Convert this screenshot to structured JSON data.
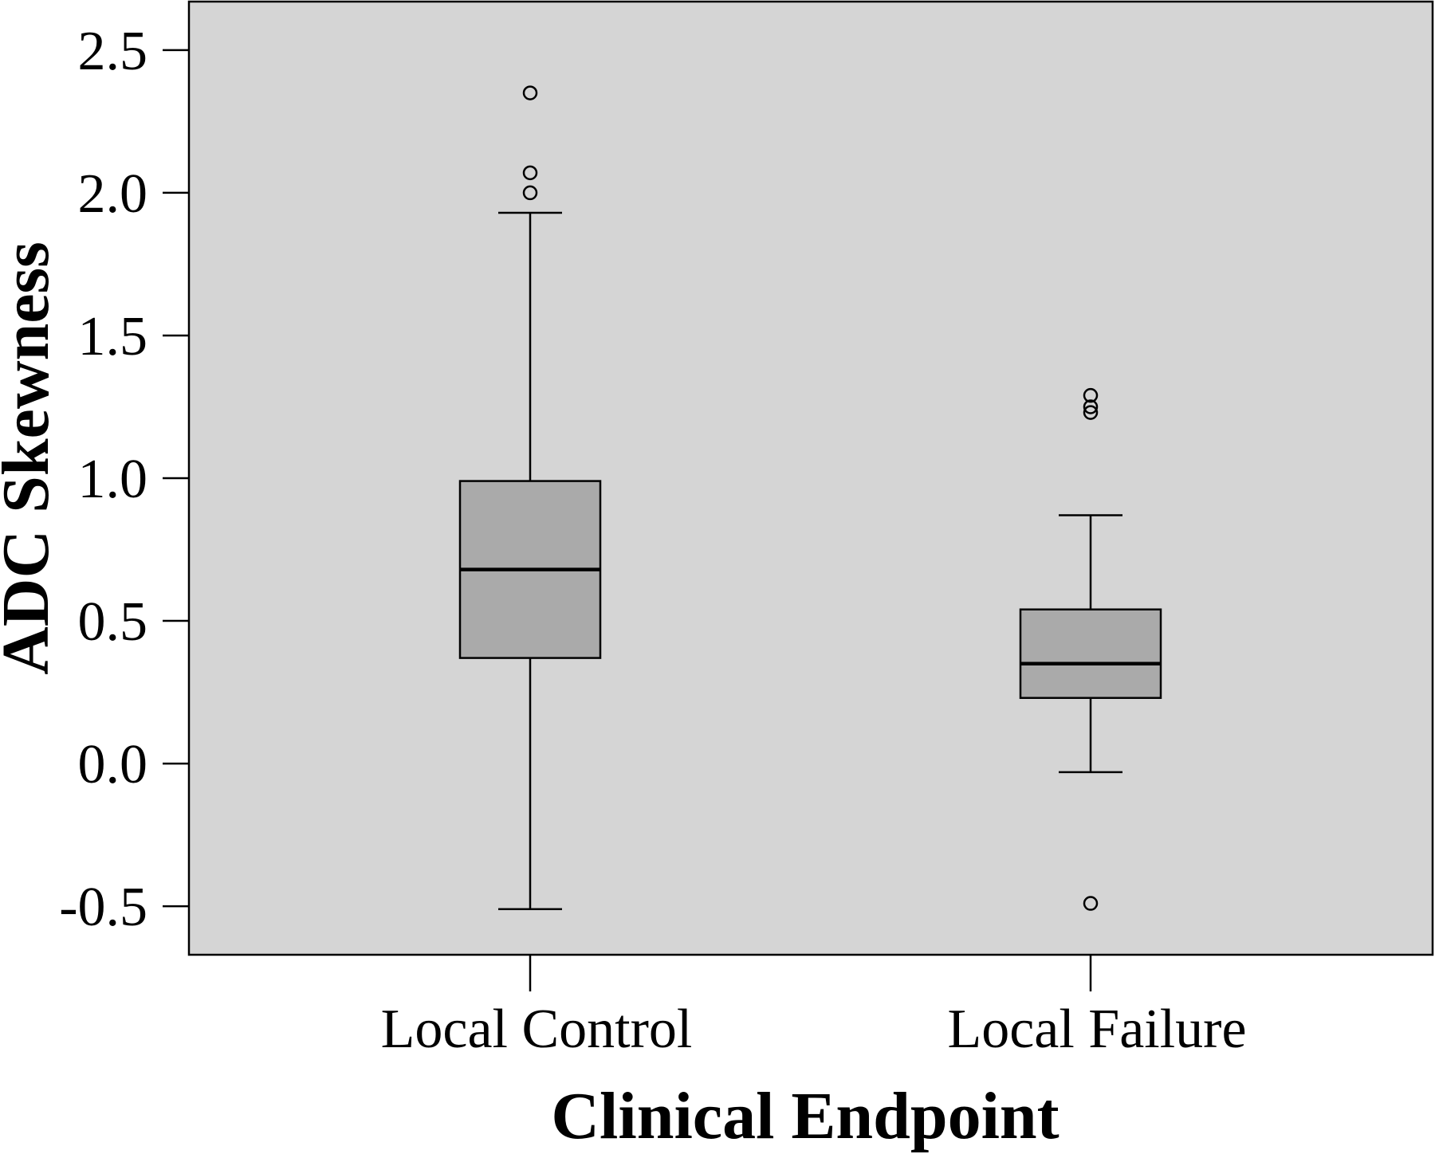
{
  "chart_data": {
    "type": "boxplot",
    "title": "",
    "xlabel": "Clinical Endpoint",
    "ylabel": "ADC Skewness",
    "ylim": [
      -0.67,
      2.67
    ],
    "yticks": [
      -0.5,
      0.0,
      0.5,
      1.0,
      1.5,
      2.0,
      2.5
    ],
    "ytick_labels": [
      "-0.5",
      "0.0",
      "0.5",
      "1.0",
      "1.5",
      "2.0",
      "2.5"
    ],
    "categories": [
      "Local Control",
      "Local Failure"
    ],
    "boxes": [
      {
        "category": "Local Control",
        "whisker_low": -0.51,
        "q1": 0.37,
        "median": 0.68,
        "q3": 0.99,
        "whisker_high": 1.93,
        "outliers": [
          2.0,
          2.07,
          2.35
        ]
      },
      {
        "category": "Local Failure",
        "whisker_low": -0.03,
        "q1": 0.23,
        "median": 0.35,
        "q3": 0.54,
        "whisker_high": 0.87,
        "outliers": [
          -0.49,
          1.23,
          1.25,
          1.29
        ]
      }
    ],
    "grid": false,
    "legend": "none",
    "colors": {
      "plot_background": "#d5d5d5",
      "box_fill": "#aaaaaa",
      "stroke": "#000000"
    }
  }
}
